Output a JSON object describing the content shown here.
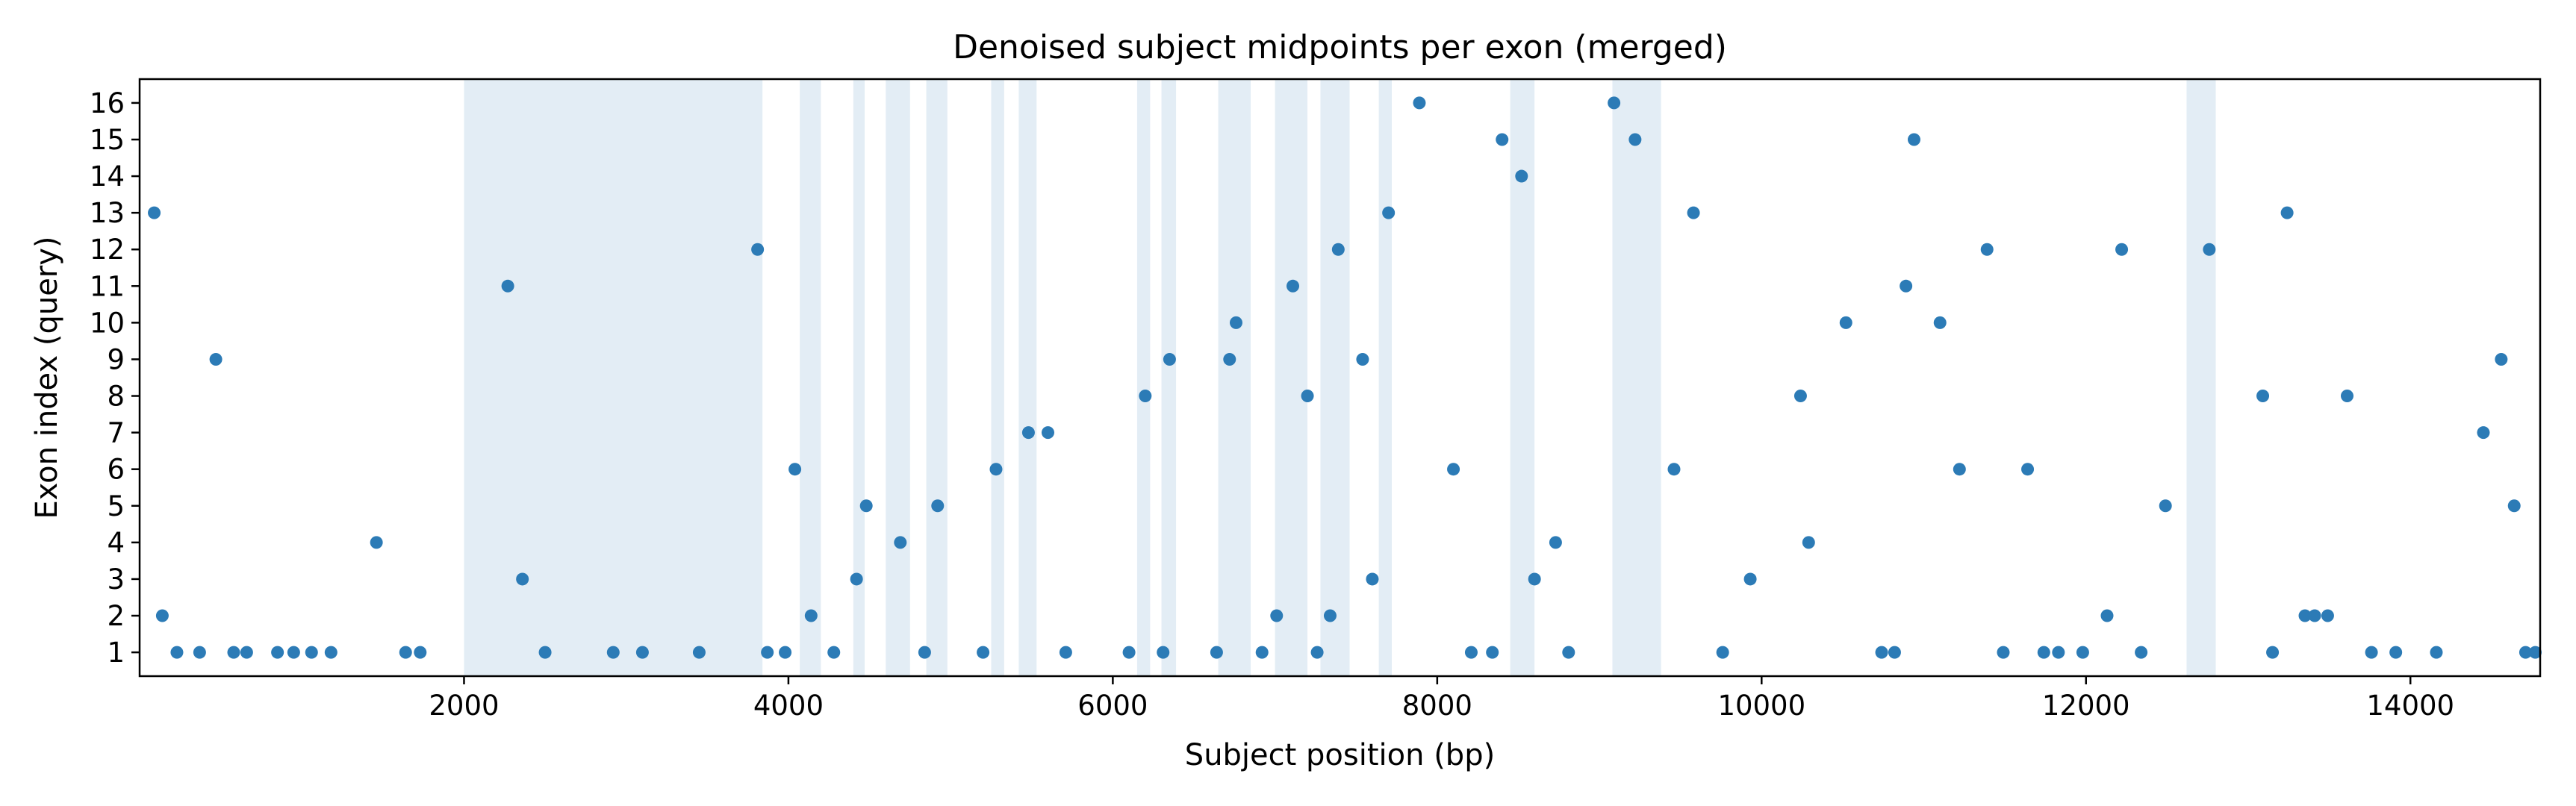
{
  "chart_data": {
    "type": "scatter",
    "title": "Denoised subject midpoints per exon (merged)",
    "xlabel": "Subject position (bp)",
    "ylabel": "Exon index (query)",
    "xlim": [
      0,
      14800
    ],
    "ylim": [
      0.35,
      16.65
    ],
    "xticks": [
      2000,
      4000,
      6000,
      8000,
      10000,
      12000,
      14000
    ],
    "yticks": [
      1,
      2,
      3,
      4,
      5,
      6,
      7,
      8,
      9,
      10,
      11,
      12,
      13,
      14,
      15,
      16
    ],
    "grid": false,
    "colors": {
      "points": "#2c7bb6",
      "bands": "#e3edf5"
    },
    "shaded_regions": [
      [
        2000,
        3840
      ],
      [
        4070,
        4200
      ],
      [
        4400,
        4470
      ],
      [
        4600,
        4750
      ],
      [
        4850,
        4980
      ],
      [
        5250,
        5330
      ],
      [
        5420,
        5530
      ],
      [
        6150,
        6230
      ],
      [
        6300,
        6390
      ],
      [
        6650,
        6850
      ],
      [
        7000,
        7200
      ],
      [
        7280,
        7460
      ],
      [
        7640,
        7720
      ],
      [
        8450,
        8600
      ],
      [
        9080,
        9380
      ],
      [
        12620,
        12800
      ]
    ],
    "points": [
      {
        "x": 90,
        "y": 13
      },
      {
        "x": 140,
        "y": 2
      },
      {
        "x": 230,
        "y": 1
      },
      {
        "x": 370,
        "y": 1
      },
      {
        "x": 470,
        "y": 9
      },
      {
        "x": 580,
        "y": 1
      },
      {
        "x": 660,
        "y": 1
      },
      {
        "x": 850,
        "y": 1
      },
      {
        "x": 950,
        "y": 1
      },
      {
        "x": 1060,
        "y": 1
      },
      {
        "x": 1180,
        "y": 1
      },
      {
        "x": 1460,
        "y": 4
      },
      {
        "x": 1640,
        "y": 1
      },
      {
        "x": 1730,
        "y": 1
      },
      {
        "x": 2270,
        "y": 11
      },
      {
        "x": 2360,
        "y": 3
      },
      {
        "x": 2500,
        "y": 1
      },
      {
        "x": 2920,
        "y": 1
      },
      {
        "x": 3100,
        "y": 1
      },
      {
        "x": 3450,
        "y": 1
      },
      {
        "x": 3810,
        "y": 12
      },
      {
        "x": 3870,
        "y": 1
      },
      {
        "x": 3980,
        "y": 1
      },
      {
        "x": 4040,
        "y": 6
      },
      {
        "x": 4140,
        "y": 2
      },
      {
        "x": 4280,
        "y": 1
      },
      {
        "x": 4420,
        "y": 3
      },
      {
        "x": 4480,
        "y": 5
      },
      {
        "x": 4690,
        "y": 4
      },
      {
        "x": 4840,
        "y": 1
      },
      {
        "x": 4920,
        "y": 5
      },
      {
        "x": 5200,
        "y": 1
      },
      {
        "x": 5280,
        "y": 6
      },
      {
        "x": 5480,
        "y": 7
      },
      {
        "x": 5600,
        "y": 7
      },
      {
        "x": 5710,
        "y": 1
      },
      {
        "x": 6100,
        "y": 1
      },
      {
        "x": 6200,
        "y": 8
      },
      {
        "x": 6310,
        "y": 1
      },
      {
        "x": 6350,
        "y": 9
      },
      {
        "x": 6640,
        "y": 1
      },
      {
        "x": 6720,
        "y": 9
      },
      {
        "x": 6760,
        "y": 10
      },
      {
        "x": 6920,
        "y": 1
      },
      {
        "x": 7010,
        "y": 2
      },
      {
        "x": 7110,
        "y": 11
      },
      {
        "x": 7200,
        "y": 8
      },
      {
        "x": 7260,
        "y": 1
      },
      {
        "x": 7340,
        "y": 2
      },
      {
        "x": 7390,
        "y": 12
      },
      {
        "x": 7540,
        "y": 9
      },
      {
        "x": 7600,
        "y": 3
      },
      {
        "x": 7700,
        "y": 13
      },
      {
        "x": 7890,
        "y": 16
      },
      {
        "x": 8100,
        "y": 6
      },
      {
        "x": 8210,
        "y": 1
      },
      {
        "x": 8340,
        "y": 1
      },
      {
        "x": 8400,
        "y": 15
      },
      {
        "x": 8520,
        "y": 14
      },
      {
        "x": 8600,
        "y": 3
      },
      {
        "x": 8730,
        "y": 4
      },
      {
        "x": 8810,
        "y": 1
      },
      {
        "x": 9090,
        "y": 16
      },
      {
        "x": 9220,
        "y": 15
      },
      {
        "x": 9460,
        "y": 6
      },
      {
        "x": 9580,
        "y": 13
      },
      {
        "x": 9760,
        "y": 1
      },
      {
        "x": 9930,
        "y": 3
      },
      {
        "x": 10240,
        "y": 8
      },
      {
        "x": 10290,
        "y": 4
      },
      {
        "x": 10520,
        "y": 10
      },
      {
        "x": 10740,
        "y": 1
      },
      {
        "x": 10820,
        "y": 1
      },
      {
        "x": 10890,
        "y": 11
      },
      {
        "x": 10940,
        "y": 15
      },
      {
        "x": 11100,
        "y": 10
      },
      {
        "x": 11220,
        "y": 6
      },
      {
        "x": 11390,
        "y": 12
      },
      {
        "x": 11490,
        "y": 1
      },
      {
        "x": 11640,
        "y": 6
      },
      {
        "x": 11740,
        "y": 1
      },
      {
        "x": 11830,
        "y": 1
      },
      {
        "x": 11980,
        "y": 1
      },
      {
        "x": 12130,
        "y": 2
      },
      {
        "x": 12220,
        "y": 12
      },
      {
        "x": 12340,
        "y": 1
      },
      {
        "x": 12490,
        "y": 5
      },
      {
        "x": 12760,
        "y": 12
      },
      {
        "x": 13090,
        "y": 8
      },
      {
        "x": 13150,
        "y": 1
      },
      {
        "x": 13240,
        "y": 13
      },
      {
        "x": 13350,
        "y": 2
      },
      {
        "x": 13410,
        "y": 2
      },
      {
        "x": 13490,
        "y": 2
      },
      {
        "x": 13610,
        "y": 8
      },
      {
        "x": 13760,
        "y": 1
      },
      {
        "x": 13910,
        "y": 1
      },
      {
        "x": 14160,
        "y": 1
      },
      {
        "x": 14450,
        "y": 7
      },
      {
        "x": 14560,
        "y": 9
      },
      {
        "x": 14640,
        "y": 5
      },
      {
        "x": 14710,
        "y": 1
      },
      {
        "x": 14770,
        "y": 1
      }
    ]
  }
}
